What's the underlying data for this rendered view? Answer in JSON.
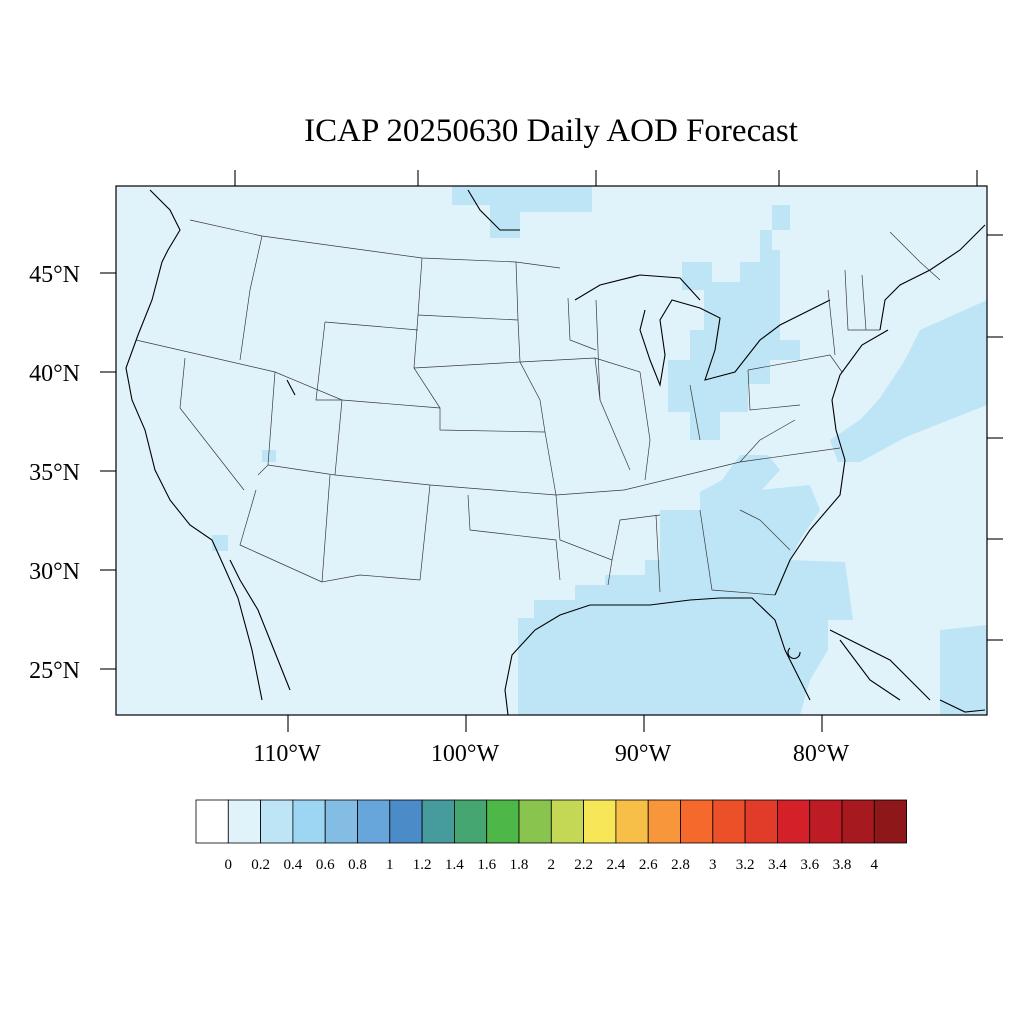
{
  "title": "ICAP 20250630 Daily AOD Forecast",
  "axes": {
    "lat_labels": [
      "45°N",
      "40°N",
      "35°N",
      "30°N",
      "25°N"
    ],
    "lon_labels": [
      "110°W",
      "100°W",
      "90°W",
      "80°W"
    ]
  },
  "colorbar": {
    "labels": [
      "0",
      "0.2",
      "0.4",
      "0.6",
      "0.8",
      "1",
      "1.2",
      "1.4",
      "1.6",
      "1.8",
      "2",
      "2.2",
      "2.4",
      "2.6",
      "2.8",
      "3",
      "3.2",
      "3.4",
      "3.6",
      "3.8",
      "4"
    ],
    "colors": [
      "#ffffff",
      "#e0f3fb",
      "#bde5f6",
      "#9dd6f2",
      "#83bde3",
      "#67a6da",
      "#4b8bc8",
      "#469b9d",
      "#45a672",
      "#4db748",
      "#89c54e",
      "#c5d855",
      "#f7e657",
      "#f8bf48",
      "#f7963b",
      "#f56a2c",
      "#ec5029",
      "#e13b2a",
      "#d32029",
      "#be1c25",
      "#a6191e",
      "#8e1719"
    ]
  },
  "legend_colors": {
    "background_aod": "#e0f3fb",
    "elevated_aod": "#bde5f6"
  }
}
